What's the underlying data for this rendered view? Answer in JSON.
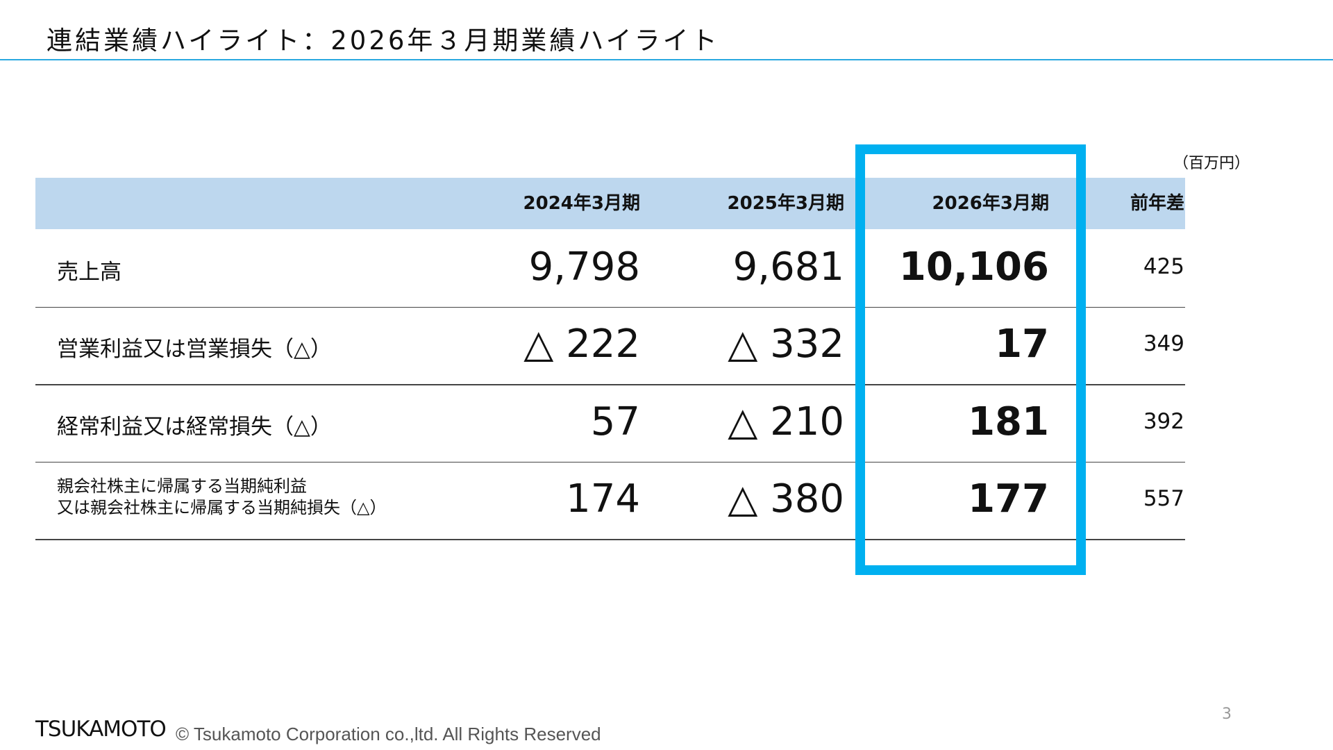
{
  "header": {
    "title": "連結業績ハイライト：2026年３月期業績ハイライト"
  },
  "unit": "（百万円）",
  "table": {
    "columns": [
      "2024年3月期",
      "2025年3月期",
      "2026年3月期",
      "前年差"
    ],
    "rows": [
      {
        "label": [
          "売上高"
        ],
        "cells": [
          "9,798",
          "9,681",
          "10,106",
          "425"
        ]
      },
      {
        "label": [
          "営業利益又は営業損失（△）"
        ],
        "cells": [
          "△ 222",
          "△ 332",
          "17",
          "349"
        ]
      },
      {
        "label": [
          "経常利益又は経常損失（△）"
        ],
        "cells": [
          "57",
          "△ 210",
          "181",
          "392"
        ]
      },
      {
        "label": [
          "親会社株主に帰属する当期純利益",
          "又は親会社株主に帰属する当期純損失（△）"
        ],
        "cells": [
          "174",
          "△ 380",
          "177",
          "557"
        ]
      }
    ]
  },
  "footer": {
    "logo": "TSUKAMOTO",
    "copyright": "© Tsukamoto Corporation co.,ltd. All Rights Reserved",
    "page": "3"
  }
}
